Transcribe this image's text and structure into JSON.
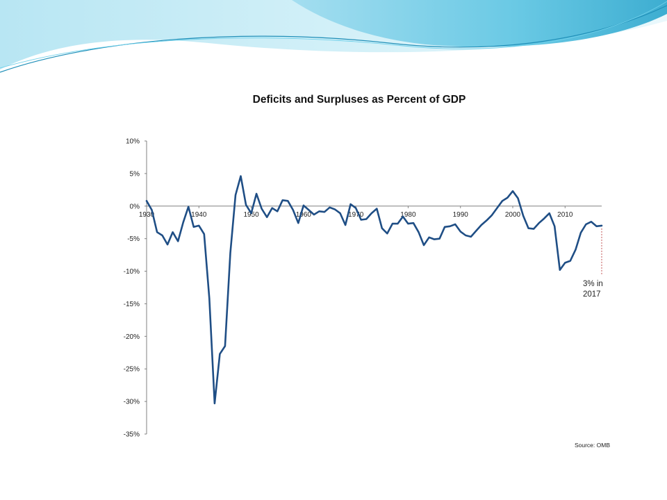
{
  "colors": {
    "line": "#1f4e85",
    "axis": "#808080",
    "banner_light": "#a6dff0",
    "banner_mid": "#54c3e2",
    "banner_dark": "#1a9cc4",
    "annotation_marker": "#c05050"
  },
  "chart_data": {
    "type": "line",
    "title": "Deficits and Surpluses as Percent of GDP",
    "xlabel": "",
    "ylabel": "",
    "xlim": [
      1930,
      2017
    ],
    "ylim": [
      -35,
      10
    ],
    "y_ticks": [
      10,
      5,
      0,
      -5,
      -10,
      -15,
      -20,
      -25,
      -30,
      -35
    ],
    "y_tick_labels": [
      "10%",
      "5%",
      "0%",
      "-5%",
      "-10%",
      "-15%",
      "-20%",
      "-25%",
      "-30%",
      "-35%"
    ],
    "x_ticks": [
      1930,
      1940,
      1950,
      1960,
      1970,
      1980,
      1990,
      2000,
      2010
    ],
    "x_tick_labels": [
      "1930",
      "1940",
      "1950",
      "1960",
      "1970",
      "1980",
      "1990",
      "2000",
      "2010"
    ],
    "grid": false,
    "legend": "none",
    "series": [
      {
        "x": [
          1930,
          1931,
          1932,
          1933,
          1934,
          1935,
          1936,
          1937,
          1938,
          1939,
          1940,
          1941,
          1942,
          1943,
          1944,
          1945,
          1946,
          1947,
          1948,
          1949,
          1950,
          1951,
          1952,
          1953,
          1954,
          1955,
          1956,
          1957,
          1958,
          1959,
          1960,
          1961,
          1962,
          1963,
          1964,
          1965,
          1966,
          1967,
          1968,
          1969,
          1970,
          1971,
          1972,
          1973,
          1974,
          1975,
          1976,
          1977,
          1978,
          1979,
          1980,
          1981,
          1982,
          1983,
          1984,
          1985,
          1986,
          1987,
          1988,
          1989,
          1990,
          1991,
          1992,
          1993,
          1994,
          1995,
          1996,
          1997,
          1998,
          1999,
          2000,
          2001,
          2002,
          2003,
          2004,
          2005,
          2006,
          2007,
          2008,
          2009,
          2010,
          2011,
          2012,
          2013,
          2014,
          2015,
          2016,
          2017
        ],
        "values": [
          0.8,
          -0.6,
          -4.0,
          -4.5,
          -5.9,
          -4.0,
          -5.4,
          -2.5,
          -0.1,
          -3.2,
          -3.0,
          -4.3,
          -14.2,
          -30.3,
          -22.7,
          -21.5,
          -7.2,
          1.7,
          4.6,
          0.2,
          -1.1,
          1.9,
          -0.4,
          -1.7,
          -0.3,
          -0.8,
          0.9,
          0.8,
          -0.6,
          -2.6,
          0.1,
          -0.6,
          -1.3,
          -0.8,
          -0.9,
          -0.2,
          -0.5,
          -1.1,
          -2.9,
          0.3,
          -0.3,
          -2.1,
          -2.0,
          -1.1,
          -0.4,
          -3.4,
          -4.2,
          -2.7,
          -2.7,
          -1.6,
          -2.7,
          -2.6,
          -4.0,
          -6.0,
          -4.8,
          -5.1,
          -5.0,
          -3.2,
          -3.1,
          -2.8,
          -3.9,
          -4.5,
          -4.7,
          -3.8,
          -2.9,
          -2.2,
          -1.4,
          -0.3,
          0.8,
          1.3,
          2.3,
          1.2,
          -1.5,
          -3.4,
          -3.5,
          -2.6,
          -1.9,
          -1.1,
          -3.1,
          -9.8,
          -8.7,
          -8.4,
          -6.7,
          -4.1,
          -2.8,
          -2.4,
          -3.1,
          -3.0
        ]
      }
    ],
    "annotations": [
      {
        "text_line1": "3% in",
        "text_line2": "2017",
        "x": 2017,
        "y": -3.0
      }
    ],
    "source": "Source: OMB"
  }
}
